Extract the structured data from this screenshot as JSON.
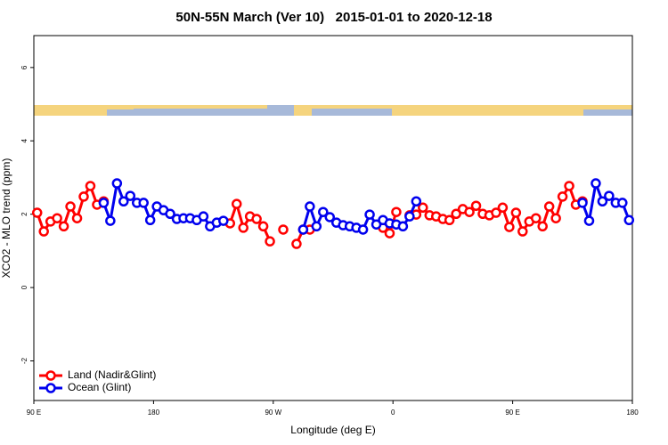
{
  "chart_data": {
    "type": "line",
    "title": "50N-55N March (Ver 10)   2015-01-01 to 2020-12-18",
    "x_label": "Longitude (deg E)",
    "y_label": "XCO2 - MLO trend (ppm)",
    "xlim": [
      90,
      540
    ],
    "ylim": [
      -3.08,
      6.87
    ],
    "xticks": [
      {
        "value": 90,
        "label": "90 E"
      },
      {
        "value": 180,
        "label": "180"
      },
      {
        "value": 270,
        "label": "90 W"
      },
      {
        "value": 360,
        "label": "0"
      },
      {
        "value": 450,
        "label": "90 E"
      },
      {
        "value": 540,
        "label": "180"
      }
    ],
    "yticks": [
      -2,
      0,
      2,
      4,
      6
    ],
    "legend": "lower left",
    "x": [
      92.5,
      97.5,
      102.5,
      107.5,
      112.5,
      117.5,
      122.5,
      127.5,
      132.5,
      137.5,
      142.5,
      147.5,
      152.5,
      157.5,
      162.5,
      167.5,
      172.5,
      177.5,
      182.5,
      187.5,
      192.5,
      197.5,
      202.5,
      207.5,
      212.5,
      217.5,
      222.5,
      227.5,
      232.5,
      237.5,
      242.5,
      247.5,
      252.5,
      257.5,
      262.5,
      267.5,
      272.5,
      277.5,
      282.5,
      287.5,
      292.5,
      297.5,
      302.5,
      307.5,
      312.5,
      317.5,
      322.5,
      327.5,
      332.5,
      337.5,
      342.5,
      347.5,
      352.5,
      357.5,
      362.5,
      367.5,
      372.5,
      377.5,
      382.5,
      387.5,
      392.5,
      397.5,
      402.5,
      407.5,
      412.5,
      417.5,
      422.5,
      427.5,
      432.5,
      437.5,
      442.5,
      447.5,
      452.5,
      457.5,
      462.5,
      467.5,
      472.5,
      477.5,
      482.5,
      487.5,
      492.5,
      497.5,
      502.5,
      507.5,
      512.5,
      517.5,
      522.5,
      527.5,
      532.5,
      537.5
    ],
    "series": [
      {
        "name": "Land (Nadir&Glint)",
        "color": "#ff0000",
        "values": [
          2.04,
          1.53,
          1.8,
          1.89,
          1.67,
          2.21,
          1.89,
          2.48,
          2.77,
          2.26,
          2.35,
          null,
          null,
          null,
          null,
          null,
          null,
          null,
          null,
          null,
          null,
          null,
          null,
          null,
          null,
          null,
          null,
          null,
          null,
          1.75,
          2.28,
          1.63,
          1.94,
          1.87,
          1.67,
          1.26,
          null,
          1.58,
          null,
          1.19,
          1.58,
          1.58,
          null,
          null,
          null,
          null,
          null,
          null,
          null,
          null,
          null,
          null,
          1.63,
          1.48,
          2.06,
          null,
          1.97,
          1.99,
          2.18,
          1.97,
          1.94,
          1.87,
          1.84,
          2.01,
          2.14,
          2.06,
          2.23,
          2.01,
          1.97,
          2.04,
          2.18,
          1.65,
          2.04,
          1.53,
          1.8,
          1.89,
          1.67,
          2.21,
          1.89,
          2.48,
          2.77,
          2.26,
          2.35,
          null,
          null,
          null,
          null,
          null,
          null,
          null
        ]
      },
      {
        "name": "Ocean (Glint)",
        "color": "#0000ee",
        "values": [
          null,
          null,
          null,
          null,
          null,
          null,
          null,
          null,
          null,
          null,
          2.31,
          1.82,
          2.84,
          2.35,
          2.5,
          2.31,
          2.31,
          1.84,
          2.21,
          2.11,
          2.01,
          1.87,
          1.89,
          1.89,
          1.84,
          1.94,
          1.67,
          1.77,
          1.82,
          null,
          null,
          null,
          null,
          null,
          null,
          null,
          null,
          null,
          null,
          null,
          1.58,
          2.21,
          1.67,
          2.06,
          1.92,
          1.77,
          1.7,
          1.67,
          1.63,
          1.58,
          1.99,
          1.72,
          1.84,
          1.75,
          1.72,
          1.67,
          1.94,
          2.35,
          null,
          null,
          null,
          null,
          null,
          null,
          null,
          null,
          null,
          null,
          null,
          null,
          null,
          null,
          null,
          null,
          null,
          null,
          null,
          null,
          null,
          null,
          null,
          null,
          2.31,
          1.82,
          2.84,
          2.35,
          2.5,
          2.31,
          2.31,
          1.84
        ]
      }
    ]
  }
}
